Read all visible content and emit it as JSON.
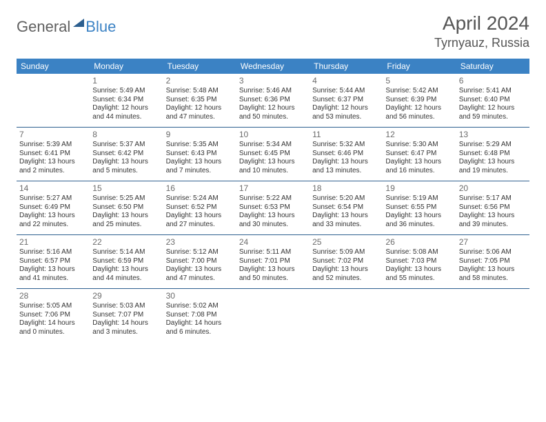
{
  "logo": {
    "text1": "General",
    "text2": "Blue"
  },
  "title": "April 2024",
  "location": "Tyrnyauz, Russia",
  "colors": {
    "header_bg": "#3b82c4",
    "header_text": "#ffffff",
    "row_border": "#2d5f8f",
    "body_text": "#333333",
    "title_text": "#555555"
  },
  "typography": {
    "title_size": 28,
    "location_size": 18,
    "header_size": 12,
    "cell_size": 10
  },
  "day_headers": [
    "Sunday",
    "Monday",
    "Tuesday",
    "Wednesday",
    "Thursday",
    "Friday",
    "Saturday"
  ],
  "weeks": [
    [
      null,
      {
        "n": "1",
        "sr": "5:49 AM",
        "ss": "6:34 PM",
        "dl": "12 hours and 44 minutes."
      },
      {
        "n": "2",
        "sr": "5:48 AM",
        "ss": "6:35 PM",
        "dl": "12 hours and 47 minutes."
      },
      {
        "n": "3",
        "sr": "5:46 AM",
        "ss": "6:36 PM",
        "dl": "12 hours and 50 minutes."
      },
      {
        "n": "4",
        "sr": "5:44 AM",
        "ss": "6:37 PM",
        "dl": "12 hours and 53 minutes."
      },
      {
        "n": "5",
        "sr": "5:42 AM",
        "ss": "6:39 PM",
        "dl": "12 hours and 56 minutes."
      },
      {
        "n": "6",
        "sr": "5:41 AM",
        "ss": "6:40 PM",
        "dl": "12 hours and 59 minutes."
      }
    ],
    [
      {
        "n": "7",
        "sr": "5:39 AM",
        "ss": "6:41 PM",
        "dl": "13 hours and 2 minutes."
      },
      {
        "n": "8",
        "sr": "5:37 AM",
        "ss": "6:42 PM",
        "dl": "13 hours and 5 minutes."
      },
      {
        "n": "9",
        "sr": "5:35 AM",
        "ss": "6:43 PM",
        "dl": "13 hours and 7 minutes."
      },
      {
        "n": "10",
        "sr": "5:34 AM",
        "ss": "6:45 PM",
        "dl": "13 hours and 10 minutes."
      },
      {
        "n": "11",
        "sr": "5:32 AM",
        "ss": "6:46 PM",
        "dl": "13 hours and 13 minutes."
      },
      {
        "n": "12",
        "sr": "5:30 AM",
        "ss": "6:47 PM",
        "dl": "13 hours and 16 minutes."
      },
      {
        "n": "13",
        "sr": "5:29 AM",
        "ss": "6:48 PM",
        "dl": "13 hours and 19 minutes."
      }
    ],
    [
      {
        "n": "14",
        "sr": "5:27 AM",
        "ss": "6:49 PM",
        "dl": "13 hours and 22 minutes."
      },
      {
        "n": "15",
        "sr": "5:25 AM",
        "ss": "6:50 PM",
        "dl": "13 hours and 25 minutes."
      },
      {
        "n": "16",
        "sr": "5:24 AM",
        "ss": "6:52 PM",
        "dl": "13 hours and 27 minutes."
      },
      {
        "n": "17",
        "sr": "5:22 AM",
        "ss": "6:53 PM",
        "dl": "13 hours and 30 minutes."
      },
      {
        "n": "18",
        "sr": "5:20 AM",
        "ss": "6:54 PM",
        "dl": "13 hours and 33 minutes."
      },
      {
        "n": "19",
        "sr": "5:19 AM",
        "ss": "6:55 PM",
        "dl": "13 hours and 36 minutes."
      },
      {
        "n": "20",
        "sr": "5:17 AM",
        "ss": "6:56 PM",
        "dl": "13 hours and 39 minutes."
      }
    ],
    [
      {
        "n": "21",
        "sr": "5:16 AM",
        "ss": "6:57 PM",
        "dl": "13 hours and 41 minutes."
      },
      {
        "n": "22",
        "sr": "5:14 AM",
        "ss": "6:59 PM",
        "dl": "13 hours and 44 minutes."
      },
      {
        "n": "23",
        "sr": "5:12 AM",
        "ss": "7:00 PM",
        "dl": "13 hours and 47 minutes."
      },
      {
        "n": "24",
        "sr": "5:11 AM",
        "ss": "7:01 PM",
        "dl": "13 hours and 50 minutes."
      },
      {
        "n": "25",
        "sr": "5:09 AM",
        "ss": "7:02 PM",
        "dl": "13 hours and 52 minutes."
      },
      {
        "n": "26",
        "sr": "5:08 AM",
        "ss": "7:03 PM",
        "dl": "13 hours and 55 minutes."
      },
      {
        "n": "27",
        "sr": "5:06 AM",
        "ss": "7:05 PM",
        "dl": "13 hours and 58 minutes."
      }
    ],
    [
      {
        "n": "28",
        "sr": "5:05 AM",
        "ss": "7:06 PM",
        "dl": "14 hours and 0 minutes."
      },
      {
        "n": "29",
        "sr": "5:03 AM",
        "ss": "7:07 PM",
        "dl": "14 hours and 3 minutes."
      },
      {
        "n": "30",
        "sr": "5:02 AM",
        "ss": "7:08 PM",
        "dl": "14 hours and 6 minutes."
      },
      null,
      null,
      null,
      null
    ]
  ],
  "labels": {
    "sunrise": "Sunrise:",
    "sunset": "Sunset:",
    "daylight": "Daylight:"
  }
}
